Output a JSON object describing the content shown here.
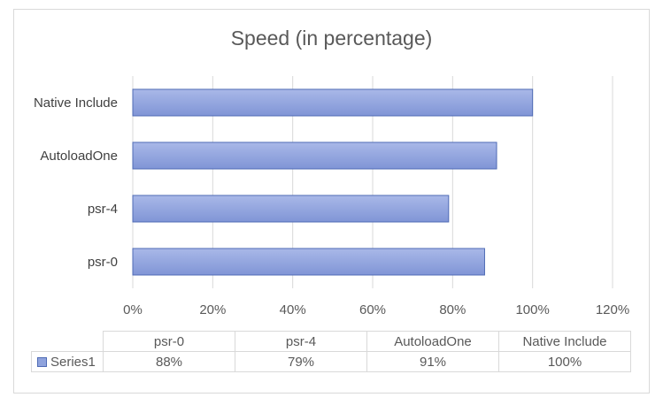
{
  "chart_data": {
    "type": "bar",
    "orientation": "horizontal",
    "title": "Speed (in percentage)",
    "categories": [
      "psr-0",
      "psr-4",
      "AutoloadOne",
      "Native Include"
    ],
    "series": [
      {
        "name": "Series1",
        "values": [
          88,
          79,
          91,
          100
        ]
      }
    ],
    "value_labels": [
      "88%",
      "79%",
      "91%",
      "100%"
    ],
    "xlim": [
      0,
      120
    ],
    "x_ticks": [
      "0%",
      "20%",
      "40%",
      "60%",
      "80%",
      "100%",
      "120%"
    ],
    "grid": true,
    "bar_fill_top": "#a9b8e8",
    "bar_fill_bottom": "#8095d6",
    "bar_stroke": "#4f6bb5",
    "data_table": true
  }
}
